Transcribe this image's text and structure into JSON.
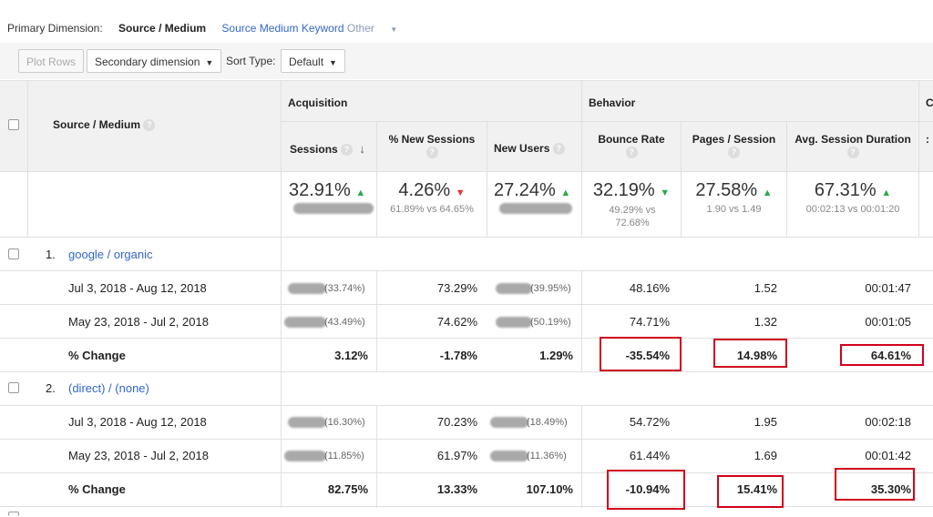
{
  "primary_dimension": {
    "label": "Primary Dimension:",
    "current": "Source / Medium",
    "options": [
      "Source",
      "Medium",
      "Keyword"
    ],
    "other": "Other"
  },
  "toolbar": {
    "plot_rows": "Plot Rows",
    "secondary_dimension": "Secondary dimension",
    "sort_type_label": "Sort Type:",
    "sort_type_value": "Default"
  },
  "headers": {
    "source_medium": "Source / Medium",
    "acquisition": "Acquisition",
    "behavior": "Behavior",
    "sessions": "Sessions",
    "new_sessions": "% New Sessions",
    "new_users": "New Users",
    "bounce_rate": "Bounce Rate",
    "pages_session": "Pages / Session",
    "avg_session_duration": "Avg. Session Duration",
    "help": "?",
    "truncated": "C"
  },
  "summary": {
    "sessions": "32.91%",
    "new_sessions": "4.26%",
    "new_sessions_sub": "61.89% vs 64.65%",
    "new_users": "27.24%",
    "bounce_rate": "32.19%",
    "bounce_rate_sub": "49.29% vs 72.68%",
    "pages_session": "27.58%",
    "pages_session_sub": "1.90 vs 1.49",
    "avg_duration": "67.31%",
    "avg_duration_sub": "00:02:13 vs 00:01:20"
  },
  "groups": [
    {
      "index": "1.",
      "name": "google / organic",
      "rows": [
        {
          "label": "Jul 3, 2018 - Aug 12, 2018",
          "sessions_pct": "(33.74%)",
          "new_sessions": "73.29%",
          "new_users_pct": "(39.95%)",
          "bounce": "48.16%",
          "pages": "1.52",
          "duration": "00:01:47"
        },
        {
          "label": "May 23, 2018 - Jul 2, 2018",
          "sessions_pct": "(43.49%)",
          "new_sessions": "74.62%",
          "new_users_pct": "(50.19%)",
          "bounce": "74.71%",
          "pages": "1.32",
          "duration": "00:01:05"
        }
      ],
      "change": {
        "label": "% Change",
        "sessions": "3.12%",
        "new_sessions": "-1.78%",
        "new_users": "1.29%",
        "bounce": "-35.54%",
        "pages": "14.98%",
        "duration": "64.61%"
      }
    },
    {
      "index": "2.",
      "name": "(direct) / (none)",
      "rows": [
        {
          "label": "Jul 3, 2018 - Aug 12, 2018",
          "sessions_pct": "(16.30%)",
          "new_sessions": "70.23%",
          "new_users_pct": "(18.49%)",
          "bounce": "54.72%",
          "pages": "1.95",
          "duration": "00:02:18"
        },
        {
          "label": "May 23, 2018 - Jul 2, 2018",
          "sessions_pct": "(11.85%)",
          "new_sessions": "61.97%",
          "new_users_pct": "(11.36%)",
          "bounce": "61.44%",
          "pages": "1.69",
          "duration": "00:01:42"
        }
      ],
      "change": {
        "label": "% Change",
        "sessions": "82.75%",
        "new_sessions": "13.33%",
        "new_users": "107.10%",
        "bounce": "-10.94%",
        "pages": "15.41%",
        "duration": "35.30%"
      }
    }
  ],
  "colors": {
    "link": "#3366cc",
    "up": "#2ea84a",
    "down": "#e53935",
    "highlight": "#d0021b"
  }
}
